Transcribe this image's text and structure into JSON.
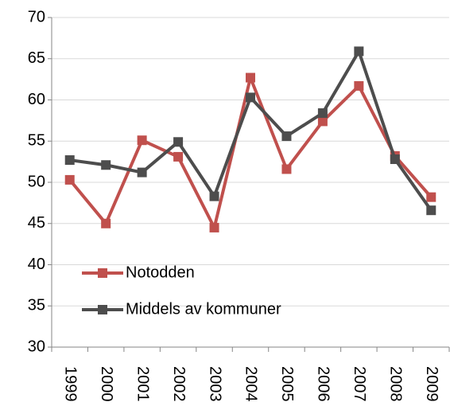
{
  "chart_data": {
    "type": "line",
    "categories": [
      "1999",
      "2000",
      "2001",
      "2002",
      "2003",
      "2004",
      "2005",
      "2006",
      "2007",
      "2008",
      "2009"
    ],
    "series": [
      {
        "name": "Notodden",
        "color": "#c0504d",
        "values": [
          50.3,
          45.0,
          55.1,
          53.1,
          44.5,
          62.7,
          51.6,
          57.4,
          61.7,
          53.2,
          48.2
        ]
      },
      {
        "name": "Middels av kommuner",
        "color": "#4d4d4d",
        "values": [
          52.7,
          52.1,
          51.2,
          54.9,
          48.3,
          60.3,
          55.6,
          58.4,
          65.9,
          52.8,
          46.6
        ]
      }
    ],
    "ylim": [
      30,
      70
    ],
    "yticks": [
      30,
      35,
      40,
      45,
      50,
      55,
      60,
      65,
      70
    ],
    "grid": true
  }
}
